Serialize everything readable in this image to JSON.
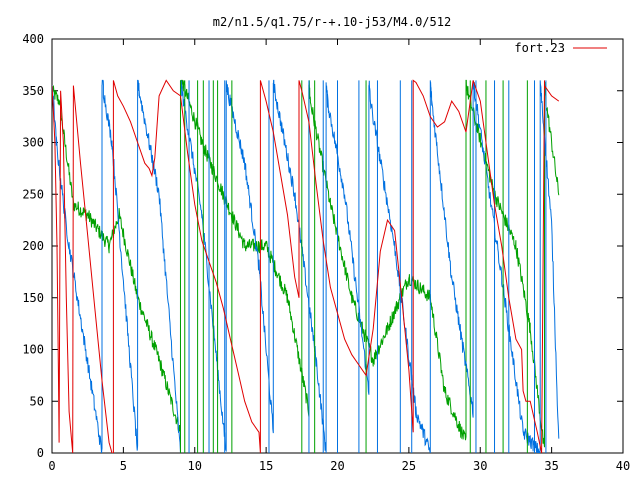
{
  "chart_data": {
    "type": "line",
    "title": "m2/n1.5/q1.75/r-+.10-j53/M4.0/512",
    "xlabel": "",
    "ylabel": "",
    "xlim": [
      0,
      40
    ],
    "ylim": [
      0,
      400
    ],
    "x_ticks": [
      0,
      5,
      10,
      15,
      20,
      25,
      30,
      35,
      40
    ],
    "y_ticks": [
      0,
      50,
      100,
      150,
      200,
      250,
      300,
      350,
      400
    ],
    "grid": false,
    "legend_position": "top-right",
    "series": [
      {
        "name": "fort.23",
        "color": "#e00000",
        "x": [
          0.0,
          0.1,
          0.2,
          0.35,
          0.45,
          0.5,
          0.6,
          0.8,
          1.0,
          1.2,
          1.45,
          1.5,
          2.0,
          2.5,
          3.0,
          3.5,
          4.0,
          4.2,
          4.3,
          4.3,
          4.6,
          5.0,
          5.5,
          6.0,
          6.5,
          6.8,
          7.0,
          7.2,
          7.5,
          8.0,
          8.5,
          9.0,
          9.5,
          10.0,
          10.5,
          11.0,
          11.5,
          12.0,
          12.5,
          13.0,
          13.5,
          14.0,
          14.5,
          14.6,
          14.6,
          15.0,
          15.5,
          16.0,
          16.5,
          17.0,
          17.3,
          17.3,
          17.5,
          18.0,
          18.5,
          19.0,
          19.5,
          20.0,
          20.5,
          21.0,
          21.5,
          22.0,
          22.5,
          23.0,
          23.5,
          24.0,
          24.5,
          25.0,
          25.3,
          25.3,
          25.5,
          26.0,
          26.5,
          27.0,
          27.5,
          28.0,
          28.5,
          29.0,
          29.5,
          30.0,
          30.5,
          31.0,
          31.5,
          32.0,
          32.5,
          32.9,
          33.0,
          33.2,
          33.5,
          34.0,
          34.3,
          34.5,
          34.5,
          35.0,
          35.5
        ],
        "y": [
          355,
          330,
          300,
          200,
          80,
          10,
          350,
          300,
          150,
          40,
          0,
          355,
          280,
          210,
          140,
          70,
          10,
          0,
          0,
          360,
          345,
          335,
          320,
          300,
          280,
          275,
          268,
          285,
          345,
          360,
          350,
          345,
          290,
          240,
          205,
          185,
          165,
          140,
          110,
          80,
          50,
          30,
          20,
          0,
          360,
          340,
          310,
          270,
          230,
          170,
          150,
          360,
          350,
          320,
          260,
          205,
          160,
          135,
          110,
          95,
          85,
          75,
          120,
          195,
          225,
          215,
          150,
          80,
          20,
          360,
          358,
          345,
          325,
          315,
          320,
          340,
          330,
          310,
          360,
          340,
          290,
          240,
          200,
          150,
          110,
          100,
          60,
          50,
          50,
          20,
          0,
          360,
          355,
          345,
          340
        ]
      }
    ]
  }
}
